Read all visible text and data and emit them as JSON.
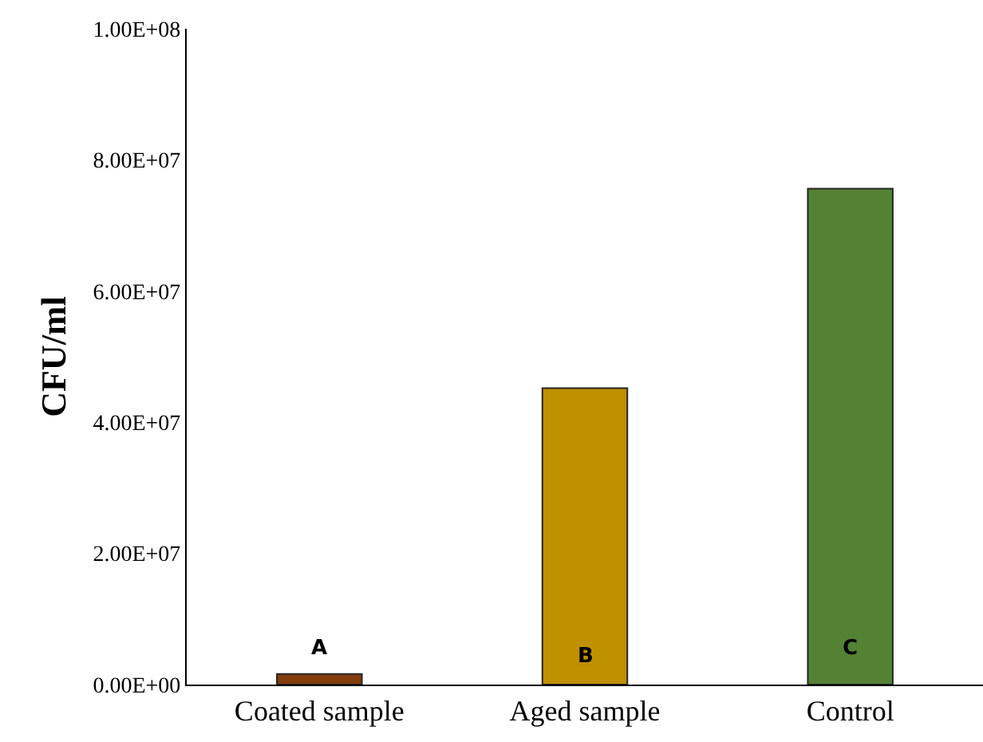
{
  "chart_data": {
    "type": "bar",
    "ylabel": "CFU/ml",
    "categories": [
      "Coated sample",
      "Aged sample",
      "Control"
    ],
    "values": [
      1600000,
      45200000,
      75600000
    ],
    "colors": [
      "#843c0c",
      "#bf9000",
      "#548235"
    ],
    "ylim": [
      0,
      100000000
    ],
    "yticks": [
      {
        "value": 0,
        "label": "0.00E+00"
      },
      {
        "value": 20000000,
        "label": "2.00E+07"
      },
      {
        "value": 40000000,
        "label": "4.00E+07"
      },
      {
        "value": 60000000,
        "label": "6.00E+07"
      },
      {
        "value": 80000000,
        "label": "8.00E+07"
      },
      {
        "value": 100000000,
        "label": "1.00E+08"
      }
    ],
    "annotations": [
      "A",
      "B",
      "C"
    ]
  }
}
